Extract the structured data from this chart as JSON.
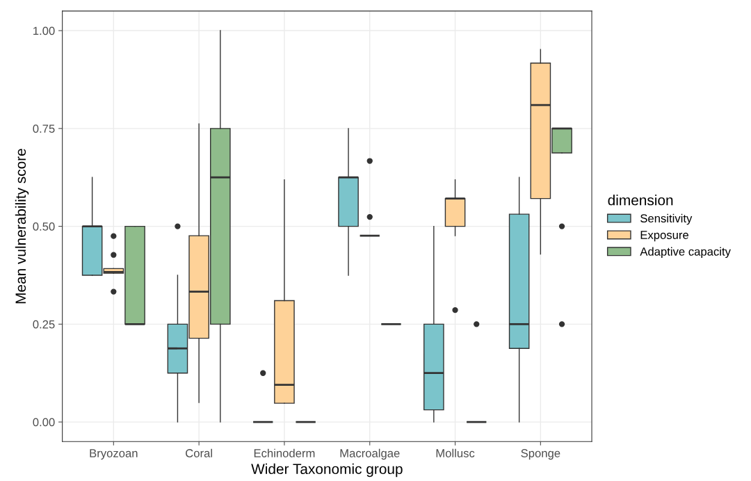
{
  "chart_data": {
    "type": "box",
    "xlabel": "Wider Taxonomic group",
    "ylabel": "Mean vulnerability score",
    "legend_title": "dimension",
    "categories": [
      "Bryozoan",
      "Coral",
      "Echinoderm",
      "Macroalgae",
      "Mollusc",
      "Sponge"
    ],
    "ylim": [
      -0.05,
      1.05
    ],
    "yticks": [
      {
        "value": 0,
        "label": "0.00"
      },
      {
        "value": 0.25,
        "label": "0.25"
      },
      {
        "value": 0.5,
        "label": "0.50"
      },
      {
        "value": 0.75,
        "label": "0.75"
      },
      {
        "value": 1,
        "label": "1.00"
      }
    ],
    "grid": true,
    "legend": "right",
    "series": [
      {
        "name": "Sensitivity",
        "color": "#7bc4cb",
        "boxes": [
          {
            "low": 0.375,
            "q1": 0.375,
            "median": 0.5,
            "q3": 0.5,
            "high": 0.625
          },
          {
            "low": 0,
            "q1": 0.125,
            "median": 0.188,
            "q3": 0.25,
            "high": 0.375,
            "outliers": [
              0.5
            ]
          },
          {
            "low": 0,
            "q1": 0,
            "median": 0,
            "q3": 0,
            "high": 0,
            "outliers": [
              0.125
            ]
          },
          {
            "low": 0.375,
            "q1": 0.5,
            "median": 0.625,
            "q3": 0.625,
            "high": 0.75
          },
          {
            "low": 0,
            "q1": 0.031,
            "median": 0.125,
            "q3": 0.25,
            "high": 0.5
          },
          {
            "low": 0,
            "q1": 0.188,
            "median": 0.25,
            "q3": 0.531,
            "high": 0.625
          }
        ]
      },
      {
        "name": "Exposure",
        "color": "#fed298",
        "boxes": [
          {
            "low": 0.38,
            "q1": 0.38,
            "median": 0.383,
            "q3": 0.392,
            "high": 0.392,
            "outliers": [
              0.475,
              0.427,
              0.333
            ]
          },
          {
            "low": 0.05,
            "q1": 0.214,
            "median": 0.333,
            "q3": 0.476,
            "high": 0.762
          },
          {
            "low": 0.048,
            "q1": 0.048,
            "median": 0.095,
            "q3": 0.31,
            "high": 0.619
          },
          {
            "low": 0.476,
            "q1": 0.476,
            "median": 0.476,
            "q3": 0.476,
            "high": 0.476,
            "outliers": [
              0.667,
              0.524
            ]
          },
          {
            "low": 0.476,
            "q1": 0.5,
            "median": 0.571,
            "q3": 0.571,
            "high": 0.619,
            "outliers": [
              0.286
            ]
          },
          {
            "low": 0.429,
            "q1": 0.571,
            "median": 0.81,
            "q3": 0.917,
            "high": 0.952
          }
        ]
      },
      {
        "name": "Adaptive capacity",
        "color": "#8fbc8b",
        "boxes": [
          {
            "low": 0.25,
            "q1": 0.25,
            "median": 0.25,
            "q3": 0.5,
            "high": 0.5
          },
          {
            "low": 0,
            "q1": 0.25,
            "median": 0.625,
            "q3": 0.75,
            "high": 1.0
          },
          {
            "low": 0,
            "q1": 0,
            "median": 0,
            "q3": 0,
            "high": 0
          },
          {
            "low": 0.25,
            "q1": 0.25,
            "median": 0.25,
            "q3": 0.25,
            "high": 0.25
          },
          {
            "low": 0,
            "q1": 0,
            "median": 0,
            "q3": 0,
            "high": 0,
            "outliers": [
              0.25
            ]
          },
          {
            "low": 0.6875,
            "q1": 0.6875,
            "median": 0.75,
            "q3": 0.75,
            "high": 0.75,
            "outliers": [
              0.5,
              0.25
            ]
          }
        ]
      }
    ]
  }
}
